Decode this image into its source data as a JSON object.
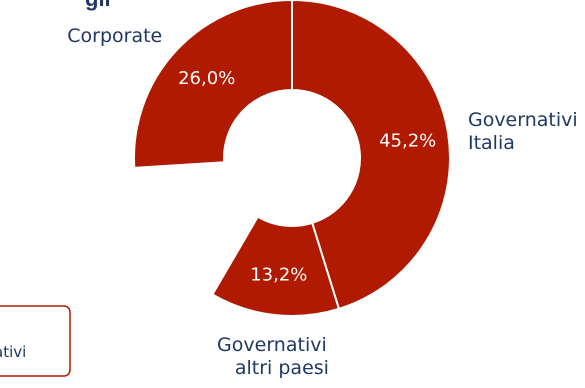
{
  "title_fragment": "gli",
  "box_text_fragment": "ativi",
  "colors": {
    "slice": "#b01a00",
    "slice_border": "#ffffff",
    "text_dark": "#1f3864",
    "text_light": "#ffffff",
    "box_border": "#b01a00"
  },
  "chart_data": {
    "type": "pie",
    "variant": "donut",
    "title": "",
    "slices": [
      {
        "name": "Governativi Italia",
        "value": 45.2,
        "label": "45,2%",
        "label_lines": [
          "Governativi",
          "Italia"
        ]
      },
      {
        "name": "Governativi altri paesi",
        "value": 13.2,
        "label": "13,2%",
        "label_lines": [
          "Governativi",
          "altri paesi"
        ]
      },
      {
        "name": "Corporate",
        "value": 26.0,
        "label": "26,0%",
        "label_lines": [
          "Corporate"
        ]
      }
    ],
    "legend": "none"
  }
}
